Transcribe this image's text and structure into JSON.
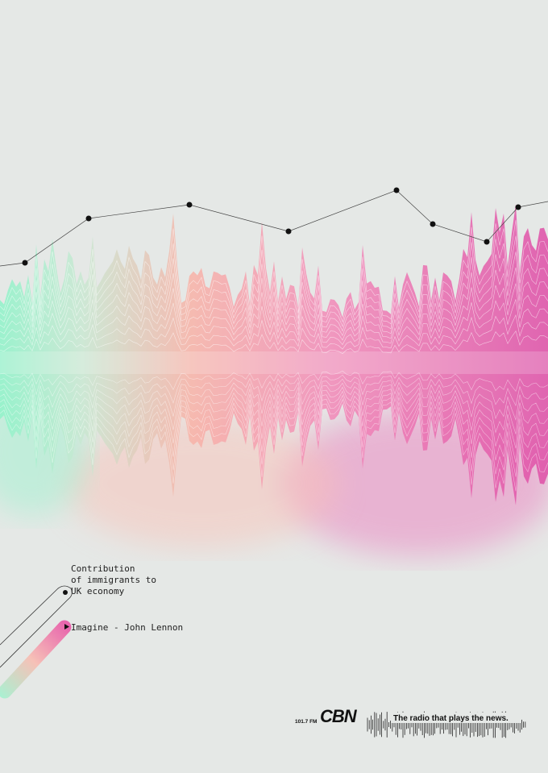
{
  "caption": {
    "lines": [
      "Contribution",
      "of immigrants to",
      "UK economy"
    ]
  },
  "track": "Imagine - John Lennon",
  "footer": {
    "frequency": "101.7 FM",
    "brand": "CBN",
    "slogan": "The radio that plays the news."
  }
}
